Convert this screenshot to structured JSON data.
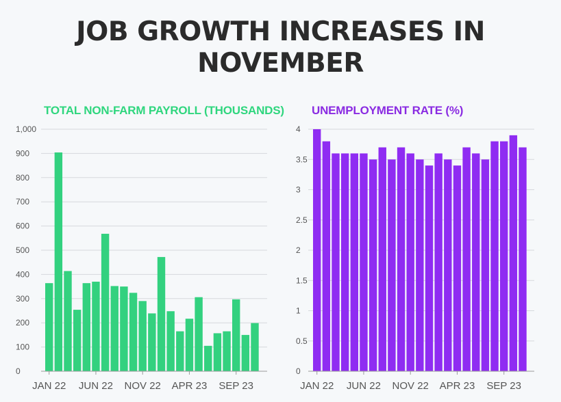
{
  "title": {
    "line1": "JOB GROWTH INCREASES IN",
    "line2": "NOVEMBER"
  },
  "chart_data": [
    {
      "type": "bar",
      "title": "TOTAL NON-FARM PAYROLL (THOUSANDS)",
      "color": "#33d17f",
      "title_color": "#2fd67e",
      "xlabel": "",
      "ylabel": "",
      "ylim": [
        0,
        1000
      ],
      "yticks": [
        0,
        100,
        200,
        300,
        400,
        500,
        600,
        700,
        800,
        900,
        1000
      ],
      "ytick_labels": [
        "0",
        "100",
        "200",
        "300",
        "400",
        "500",
        "600",
        "700",
        "800",
        "900",
        "1,000"
      ],
      "grid": true,
      "categories": [
        "Jan 22",
        "Feb 22",
        "Mar 22",
        "Apr 22",
        "May 22",
        "Jun 22",
        "Jul 22",
        "Aug 22",
        "Sep 22",
        "Oct 22",
        "Nov 22",
        "Dec 22",
        "Jan 23",
        "Feb 23",
        "Mar 23",
        "Apr 23",
        "May 23",
        "Jun 23",
        "Jul 23",
        "Aug 23",
        "Sep 23",
        "Oct 23",
        "Nov 23"
      ],
      "values": [
        364,
        904,
        414,
        254,
        364,
        370,
        568,
        352,
        350,
        324,
        290,
        239,
        472,
        248,
        165,
        217,
        306,
        105,
        157,
        165,
        297,
        150,
        199
      ],
      "xtick_labels": [
        {
          "index": 0,
          "label": "JAN 22"
        },
        {
          "index": 5,
          "label": "JUN 22"
        },
        {
          "index": 10,
          "label": "NOV 22"
        },
        {
          "index": 15,
          "label": "APR 23"
        },
        {
          "index": 20,
          "label": "SEP 23"
        }
      ]
    },
    {
      "type": "bar",
      "title": "UNEMPLOYMENT RATE (%)",
      "color": "#8f2cf2",
      "title_color": "#8a2be2",
      "xlabel": "",
      "ylabel": "",
      "ylim": [
        0,
        4
      ],
      "yticks": [
        0,
        0.5,
        1,
        1.5,
        2,
        2.5,
        3,
        3.5,
        4
      ],
      "ytick_labels": [
        "0",
        "0.5",
        "1",
        "1.5",
        "2",
        "2.5",
        "3",
        "3.5",
        "4"
      ],
      "grid": true,
      "categories": [
        "Jan 22",
        "Feb 22",
        "Mar 22",
        "Apr 22",
        "May 22",
        "Jun 22",
        "Jul 22",
        "Aug 22",
        "Sep 22",
        "Oct 22",
        "Nov 22",
        "Dec 22",
        "Jan 23",
        "Feb 23",
        "Mar 23",
        "Apr 23",
        "May 23",
        "Jun 23",
        "Jul 23",
        "Aug 23",
        "Sep 23",
        "Oct 23",
        "Nov 23"
      ],
      "values": [
        4.0,
        3.8,
        3.6,
        3.6,
        3.6,
        3.6,
        3.5,
        3.7,
        3.5,
        3.7,
        3.6,
        3.5,
        3.4,
        3.6,
        3.5,
        3.4,
        3.7,
        3.6,
        3.5,
        3.8,
        3.8,
        3.9,
        3.7
      ],
      "xtick_labels": [
        {
          "index": 0,
          "label": "JAN 22"
        },
        {
          "index": 5,
          "label": "JUN 22"
        },
        {
          "index": 10,
          "label": "NOV 22"
        },
        {
          "index": 15,
          "label": "APR 23"
        },
        {
          "index": 20,
          "label": "SEP 23"
        }
      ]
    }
  ]
}
